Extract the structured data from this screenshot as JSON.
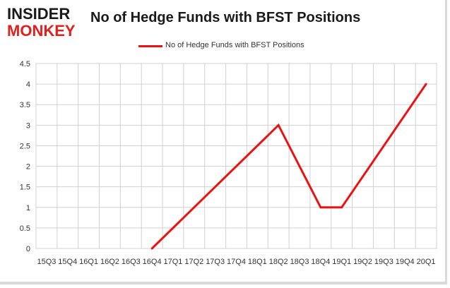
{
  "logo": {
    "line1": "INSIDER",
    "line2": "MONKEY"
  },
  "chart_data": {
    "type": "line",
    "title": "No of Hedge Funds with BFST Positions",
    "xlabel": "",
    "ylabel": "",
    "categories": [
      "15Q3",
      "15Q4",
      "16Q1",
      "16Q2",
      "16Q3",
      "16Q4",
      "17Q1",
      "17Q2",
      "17Q3",
      "17Q4",
      "18Q1",
      "18Q2",
      "18Q3",
      "18Q4",
      "19Q1",
      "19Q2",
      "19Q3",
      "19Q4",
      "20Q1"
    ],
    "series": [
      {
        "name": "No of Hedge Funds with BFST Positions",
        "values": [
          null,
          null,
          null,
          null,
          null,
          0,
          null,
          null,
          null,
          null,
          null,
          3,
          null,
          1,
          1,
          null,
          null,
          null,
          4
        ],
        "color": "#ee1111"
      }
    ],
    "ylim": [
      0,
      4.5
    ],
    "yticks": [
      "0",
      "0.5",
      "1",
      "1.5",
      "2",
      "2.5",
      "3",
      "3.5",
      "4",
      "4.5"
    ],
    "grid": true,
    "legend": "top-center"
  }
}
